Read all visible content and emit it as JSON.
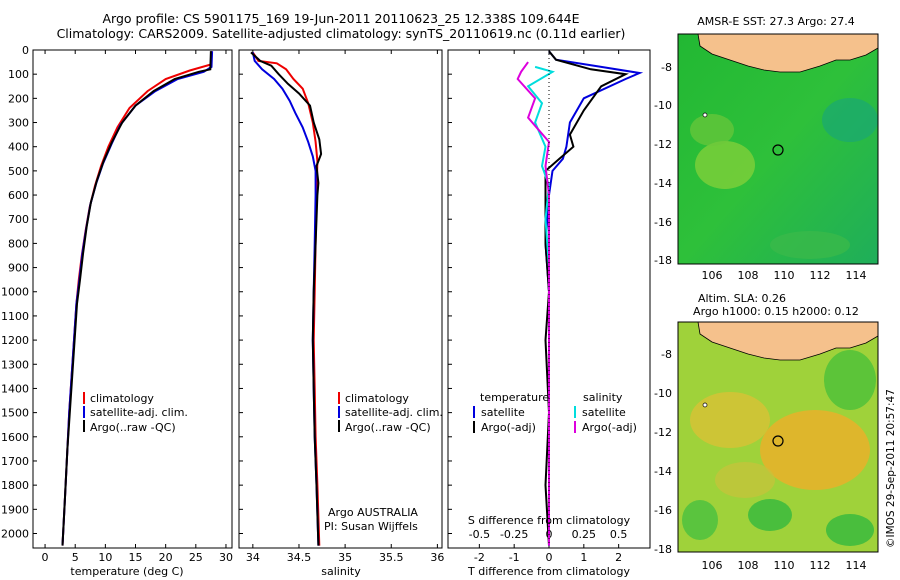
{
  "header": {
    "title_line1": "Argo profile: CS 5901175_169 19-Jun-2011 20110623_25 12.338S 109.644E",
    "title_line2": "Climatology: CARS2009. Satellite-adjusted climatology: synTS_20110619.nc (0.11d earlier)"
  },
  "colors": {
    "climatology": "#ee0000",
    "satellite": "#0000dd",
    "argo": "#000000",
    "sat_salinity": "#00dddd",
    "argo_salinity": "#dd00dd",
    "land": "#f5c18c"
  },
  "chart_data": [
    {
      "id": "temperature",
      "type": "line",
      "xlabel": "temperature (deg C)",
      "ylabel": "",
      "xlim": [
        -2,
        31
      ],
      "ylim": [
        2060,
        0
      ],
      "xticks": [
        0,
        5,
        10,
        15,
        20,
        25,
        30
      ],
      "yticks": [
        0,
        100,
        200,
        300,
        400,
        500,
        600,
        700,
        800,
        900,
        1000,
        1100,
        1200,
        1300,
        1400,
        1500,
        1600,
        1700,
        1800,
        1900,
        2000
      ],
      "legend": [
        "climatology",
        "satellite-adj. clim.",
        "Argo(..raw -QC)"
      ],
      "series": [
        {
          "name": "climatology",
          "color": "#ee0000",
          "points": [
            [
              27.6,
              5
            ],
            [
              27.5,
              60
            ],
            [
              24,
              85
            ],
            [
              20,
              120
            ],
            [
              17,
              170
            ],
            [
              14,
              240
            ],
            [
              12,
              320
            ],
            [
              10.5,
              400
            ],
            [
              9.3,
              480
            ],
            [
              8.3,
              560
            ],
            [
              7.4,
              650
            ],
            [
              6.7,
              750
            ],
            [
              6.1,
              850
            ],
            [
              5.6,
              950
            ],
            [
              5.2,
              1050
            ],
            [
              4.8,
              1200
            ],
            [
              4.4,
              1350
            ],
            [
              4,
              1500
            ],
            [
              3.7,
              1650
            ],
            [
              3.3,
              1850
            ],
            [
              2.9,
              2050
            ]
          ]
        },
        {
          "name": "satellite-adj. clim.",
          "color": "#0000dd",
          "points": [
            [
              27.7,
              5
            ],
            [
              27.6,
              70
            ],
            [
              26.3,
              90
            ],
            [
              22,
              120
            ],
            [
              18.3,
              170
            ],
            [
              15,
              230
            ],
            [
              12.5,
              310
            ],
            [
              11,
              390
            ],
            [
              9.6,
              470
            ],
            [
              8.5,
              550
            ],
            [
              7.5,
              640
            ],
            [
              6.8,
              740
            ],
            [
              6.2,
              840
            ],
            [
              5.7,
              950
            ],
            [
              5.2,
              1050
            ],
            [
              4.8,
              1200
            ],
            [
              4.4,
              1350
            ],
            [
              4,
              1500
            ],
            [
              3.7,
              1650
            ],
            [
              3.3,
              1850
            ],
            [
              2.9,
              2050
            ]
          ]
        },
        {
          "name": "Argo(..raw -QC)",
          "color": "#000000",
          "points": [
            [
              27.5,
              5
            ],
            [
              27.4,
              80
            ],
            [
              25.5,
              90
            ],
            [
              21.5,
              120
            ],
            [
              18,
              170
            ],
            [
              15,
              230
            ],
            [
              12.8,
              300
            ],
            [
              11.1,
              380
            ],
            [
              9.7,
              460
            ],
            [
              8.6,
              540
            ],
            [
              7.6,
              630
            ],
            [
              6.9,
              730
            ],
            [
              6.3,
              840
            ],
            [
              5.8,
              950
            ],
            [
              5.3,
              1050
            ],
            [
              4.9,
              1200
            ],
            [
              4.5,
              1350
            ],
            [
              4.1,
              1500
            ],
            [
              3.7,
              1650
            ],
            [
              3.3,
              1850
            ],
            [
              2.9,
              2050
            ]
          ]
        }
      ]
    },
    {
      "id": "salinity",
      "type": "line",
      "xlabel": "salinity",
      "xlim": [
        33.85,
        36.05
      ],
      "ylim": [
        2060,
        0
      ],
      "xticks": [
        34,
        34.5,
        35,
        35.5,
        36
      ],
      "legend": [
        "climatology",
        "satellite-adj. clim.",
        "Argo(..raw -QC)"
      ],
      "annotation": [
        "Argo AUSTRALIA",
        "PI: Susan Wijffels"
      ],
      "series": [
        {
          "name": "climatology",
          "color": "#ee0000",
          "points": [
            [
              34.0,
              10
            ],
            [
              34.06,
              45
            ],
            [
              34.26,
              55
            ],
            [
              34.36,
              80
            ],
            [
              34.44,
              120
            ],
            [
              34.54,
              160
            ],
            [
              34.6,
              220
            ],
            [
              34.65,
              300
            ],
            [
              34.68,
              380
            ],
            [
              34.7,
              460
            ],
            [
              34.69,
              600
            ],
            [
              34.68,
              800
            ],
            [
              34.67,
              1000
            ],
            [
              34.66,
              1200
            ],
            [
              34.67,
              1400
            ],
            [
              34.68,
              1600
            ],
            [
              34.7,
              1800
            ],
            [
              34.72,
              2050
            ]
          ]
        },
        {
          "name": "satellite-adj. clim.",
          "color": "#0000dd",
          "points": [
            [
              34.0,
              10
            ],
            [
              34.02,
              45
            ],
            [
              34.1,
              80
            ],
            [
              34.23,
              120
            ],
            [
              34.32,
              160
            ],
            [
              34.4,
              210
            ],
            [
              34.46,
              260
            ],
            [
              34.54,
              320
            ],
            [
              34.6,
              380
            ],
            [
              34.65,
              440
            ],
            [
              34.68,
              500
            ],
            [
              34.68,
              600
            ],
            [
              34.67,
              800
            ],
            [
              34.66,
              1000
            ],
            [
              34.65,
              1200
            ],
            [
              34.66,
              1400
            ],
            [
              34.67,
              1600
            ],
            [
              34.69,
              1800
            ],
            [
              34.71,
              2050
            ]
          ]
        },
        {
          "name": "Argo(..raw -QC)",
          "color": "#000000",
          "points": [
            [
              33.98,
              10
            ],
            [
              34.08,
              45
            ],
            [
              34.2,
              65
            ],
            [
              34.28,
              100
            ],
            [
              34.38,
              140
            ],
            [
              34.5,
              180
            ],
            [
              34.62,
              230
            ],
            [
              34.66,
              300
            ],
            [
              34.72,
              370
            ],
            [
              34.74,
              430
            ],
            [
              34.69,
              480
            ],
            [
              34.71,
              550
            ],
            [
              34.7,
              600
            ],
            [
              34.68,
              800
            ],
            [
              34.66,
              1000
            ],
            [
              34.65,
              1200
            ],
            [
              34.66,
              1400
            ],
            [
              34.67,
              1600
            ],
            [
              34.69,
              1800
            ],
            [
              34.71,
              2050
            ]
          ]
        }
      ]
    },
    {
      "id": "difference",
      "type": "line",
      "xlabel": "T difference from climatology",
      "xlabel_top": "S difference from climatology",
      "xlim": [
        -2.9,
        2.9
      ],
      "ylim": [
        2060,
        0
      ],
      "xticks": [
        -2,
        -1,
        0,
        1,
        2
      ],
      "sticks": [
        "-0.5",
        "-0.25",
        "0",
        "0.25",
        "0.5"
      ],
      "legend_headers": [
        "temperature",
        "salinity"
      ],
      "legend": [
        "satellite",
        "Argo(-adj)",
        "satellite",
        "Argo(-adj)"
      ],
      "series": [
        {
          "name": "satellite",
          "color": "#0000dd",
          "points": [
            [
              0,
              5
            ],
            [
              0.2,
              40
            ],
            [
              1.5,
              70
            ],
            [
              2.6,
              95
            ],
            [
              2.2,
              120
            ],
            [
              1,
              200
            ],
            [
              0.6,
              300
            ],
            [
              0.5,
              400
            ],
            [
              0.4,
              450
            ],
            [
              0.1,
              500
            ],
            [
              0,
              600
            ],
            [
              -0.1,
              800
            ],
            [
              0,
              1000
            ],
            [
              0,
              1400
            ],
            [
              0,
              2050
            ]
          ]
        },
        {
          "name": "Argo(-adj)",
          "color": "#000000",
          "points": [
            [
              0,
              5
            ],
            [
              0.2,
              40
            ],
            [
              1.2,
              80
            ],
            [
              2.2,
              100
            ],
            [
              1.5,
              150
            ],
            [
              1,
              250
            ],
            [
              0.6,
              350
            ],
            [
              0.7,
              400
            ],
            [
              0.3,
              450
            ],
            [
              -0.1,
              500
            ],
            [
              -0.1,
              800
            ],
            [
              0,
              1000
            ],
            [
              -0.1,
              1200
            ],
            [
              0,
              1500
            ],
            [
              -0.1,
              1800
            ],
            [
              0,
              2050
            ]
          ]
        },
        {
          "name": "satellite",
          "color": "#00dddd",
          "points": [
            [
              -0.4,
              70
            ],
            [
              0.1,
              90
            ],
            [
              -0.6,
              150
            ],
            [
              -0.2,
              220
            ],
            [
              -0.4,
              300
            ],
            [
              -0.1,
              400
            ],
            [
              -0.2,
              480
            ],
            [
              0,
              560
            ],
            [
              -0.1,
              700
            ],
            [
              0,
              900
            ],
            [
              0,
              1200
            ],
            [
              0,
              1500
            ],
            [
              0,
              2050
            ]
          ]
        },
        {
          "name": "Argo(-adj)",
          "color": "#dd00dd",
          "points": [
            [
              -0.6,
              50
            ],
            [
              -0.8,
              90
            ],
            [
              -0.9,
              120
            ],
            [
              -0.4,
              200
            ],
            [
              -0.6,
              280
            ],
            [
              0,
              380
            ],
            [
              -0.1,
              480
            ],
            [
              0,
              600
            ],
            [
              0,
              900
            ],
            [
              0,
              1300
            ],
            [
              0,
              2050
            ]
          ]
        }
      ]
    }
  ],
  "maps": [
    {
      "title": "AMSR-E SST: 27.3  Argo: 27.4",
      "xticks": [
        "106",
        "108",
        "110",
        "112",
        "114"
      ],
      "yticks": [
        "-8",
        "-10",
        "-12",
        "-14",
        "-16",
        "-18"
      ]
    },
    {
      "title_line1": "Altim. SLA: 0.26",
      "title_line2": "Argo h1000: 0.15 h2000: 0.12",
      "xticks": [
        "106",
        "108",
        "110",
        "112",
        "114"
      ],
      "yticks": [
        "-8",
        "-10",
        "-12",
        "-14",
        "-16",
        "-18"
      ]
    }
  ],
  "credit": "©IMOS 29-Sep-2011 20:57:47"
}
